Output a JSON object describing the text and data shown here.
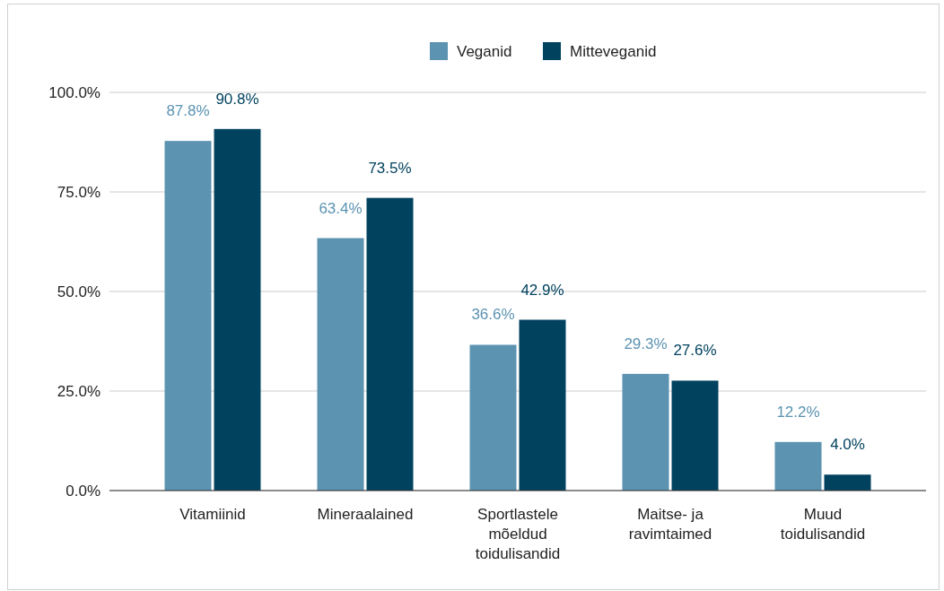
{
  "chart_data": {
    "type": "bar",
    "categories": [
      "Vitamiinid",
      "Mineraalained",
      "Sportlastele mõeldud toidulisandid",
      "Maitse- ja ravimtaimed",
      "Muud toidulisandid"
    ],
    "series": [
      {
        "name": "Veganid",
        "color": "#5b93b1",
        "values": [
          87.8,
          63.4,
          36.6,
          29.3,
          12.2
        ],
        "value_labels": [
          "87.8%",
          "63.4%",
          "36.6%",
          "29.3%",
          "12.2%"
        ]
      },
      {
        "name": "Mitteveganid",
        "color": "#01425f",
        "values": [
          90.8,
          73.5,
          42.9,
          27.6,
          4.0
        ],
        "value_labels": [
          "90.8%",
          "73.5%",
          "42.9%",
          "27.6%",
          "4.0%"
        ]
      }
    ],
    "ylim": [
      0,
      100
    ],
    "yticks": [
      {
        "value": 0,
        "label": "0.0%"
      },
      {
        "value": 25,
        "label": "25.0%"
      },
      {
        "value": 50,
        "label": "50.0%"
      },
      {
        "value": 75,
        "label": "75.0%"
      },
      {
        "value": 100,
        "label": "100.0%"
      }
    ],
    "grid": "y",
    "legend": "top"
  }
}
